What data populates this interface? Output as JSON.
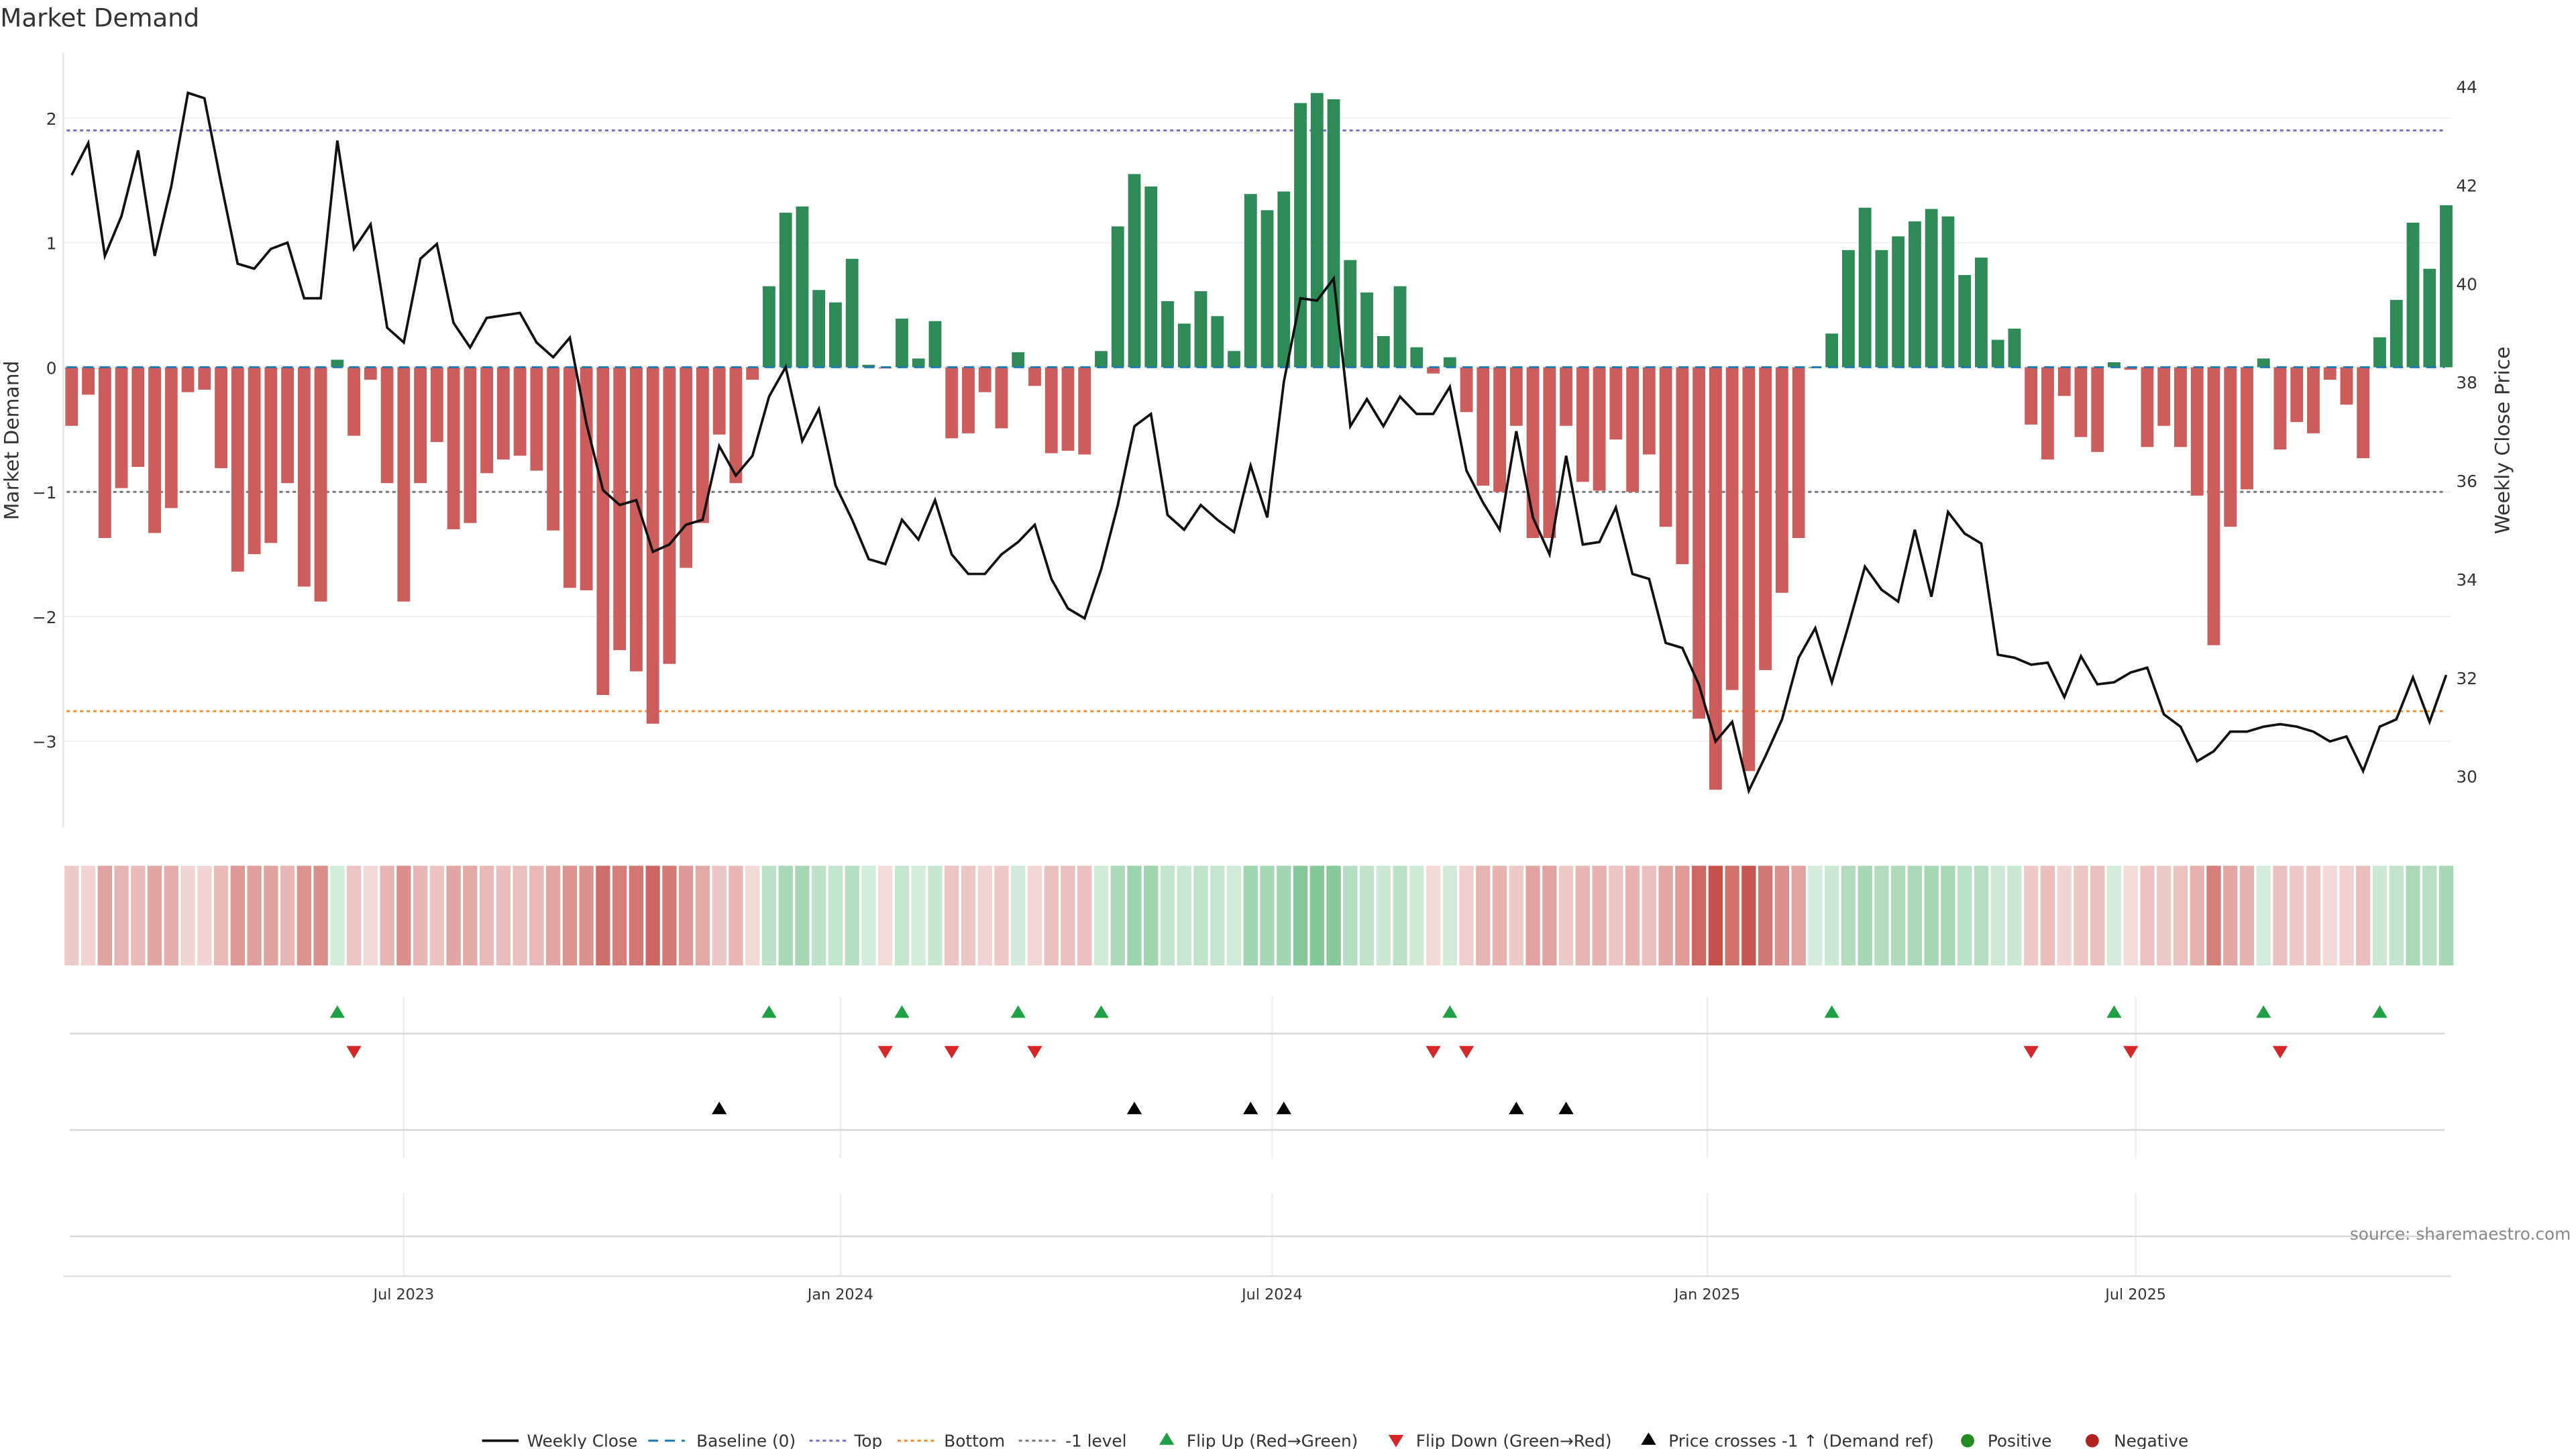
{
  "chart_data": {
    "type": "bar",
    "title": "Market Demand",
    "ylabel": "Market Demand",
    "y2label": "Weekly Close Price",
    "ylim": [
      -3.75,
      2.5
    ],
    "y2lim": [
      29.2,
      44.5
    ],
    "yticks": [
      "2",
      "1",
      "0",
      "−1",
      "−2",
      "−3"
    ],
    "ytick_values": [
      2,
      1,
      0,
      -1,
      -2,
      -3
    ],
    "y2ticks": [
      "44",
      "42",
      "40",
      "38",
      "36",
      "34",
      "32",
      "30"
    ],
    "y2tick_values": [
      44,
      42,
      40,
      38,
      36,
      34,
      32,
      30
    ],
    "xticks": [
      "Jul 2023",
      "Jan 2024",
      "Jul 2024",
      "Jan 2025",
      "Jul 2025"
    ],
    "xtick_week_index": [
      20.0,
      46.3,
      72.3,
      98.5,
      124.3
    ],
    "reference_lines": {
      "top": 1.9,
      "bottom": -2.76,
      "minus_one": -1,
      "baseline": 0
    },
    "demand": [
      -0.47,
      -0.22,
      -1.37,
      -0.97,
      -0.8,
      -1.33,
      -1.13,
      -0.2,
      -0.18,
      -0.81,
      -1.64,
      -1.5,
      -1.41,
      -0.93,
      -1.76,
      -1.88,
      0.06,
      -0.55,
      -0.1,
      -0.93,
      -1.88,
      -0.93,
      -0.6,
      -1.3,
      -1.25,
      -0.85,
      -0.74,
      -0.71,
      -0.83,
      -1.31,
      -1.77,
      -1.79,
      -2.63,
      -2.27,
      -2.44,
      -2.86,
      -2.38,
      -1.61,
      -1.25,
      -0.54,
      -0.93,
      -0.1,
      0.65,
      1.24,
      1.29,
      0.62,
      0.52,
      0.87,
      0.02,
      -0.01,
      0.39,
      0.07,
      0.37,
      -0.57,
      -0.53,
      -0.2,
      -0.49,
      0.12,
      -0.15,
      -0.69,
      -0.67,
      -0.7,
      0.13,
      1.13,
      1.55,
      1.45,
      0.53,
      0.35,
      0.61,
      0.41,
      0.13,
      1.39,
      1.26,
      1.41,
      2.12,
      2.2,
      2.15,
      0.86,
      0.6,
      0.25,
      0.65,
      0.16,
      -0.05,
      0.08,
      -0.36,
      -0.95,
      -1.0,
      -0.47,
      -1.37,
      -1.37,
      -0.47,
      -0.92,
      -0.99,
      -0.58,
      -1.0,
      -0.7,
      -1.28,
      -1.58,
      -2.82,
      -3.39,
      -2.59,
      -3.24,
      -2.43,
      -1.81,
      -1.37,
      0.0,
      0.27,
      0.94,
      1.28,
      0.94,
      1.05,
      1.17,
      1.27,
      1.21,
      0.74,
      0.88,
      0.22,
      0.31,
      -0.46,
      -0.74,
      -0.23,
      -0.56,
      -0.68,
      0.04,
      -0.02,
      -0.64,
      -0.47,
      -0.64,
      -1.03,
      -2.23,
      -1.28,
      -0.98,
      0.07,
      -0.66,
      -0.44,
      -0.53,
      -0.1,
      -0.3,
      -0.73,
      0.24,
      0.54,
      1.16,
      0.79,
      1.3
    ],
    "weekly_close": [
      42.2,
      42.85,
      40.56,
      41.37,
      42.7,
      40.56,
      41.98,
      43.87,
      43.76,
      42.04,
      40.4,
      40.3,
      40.7,
      40.83,
      39.7,
      39.7,
      42.9,
      40.7,
      41.2,
      39.1,
      38.8,
      40.5,
      40.8,
      39.2,
      38.7,
      39.3,
      39.35,
      39.4,
      38.8,
      38.5,
      38.9,
      37.15,
      35.8,
      35.5,
      35.6,
      34.55,
      34.7,
      35.1,
      35.2,
      36.7,
      36.1,
      36.5,
      37.7,
      38.3,
      36.8,
      37.45,
      35.9,
      35.2,
      34.4,
      34.3,
      35.2,
      34.8,
      35.6,
      34.5,
      34.1,
      34.1,
      34.5,
      34.75,
      35.1,
      34.0,
      33.4,
      33.2,
      34.2,
      35.5,
      37.1,
      37.35,
      35.3,
      35.0,
      35.5,
      35.2,
      34.95,
      36.3,
      35.25,
      38.0,
      39.7,
      39.65,
      40.1,
      37.1,
      37.65,
      37.1,
      37.7,
      37.35,
      37.35,
      37.9,
      36.2,
      35.55,
      35.0,
      37.0,
      35.25,
      34.5,
      36.5,
      34.7,
      34.75,
      35.45,
      34.1,
      34.0,
      32.7,
      32.6,
      31.85,
      30.7,
      31.1,
      29.7,
      30.4,
      31.15,
      32.4,
      33.0,
      31.9,
      33.06,
      34.25,
      33.78,
      33.54,
      35.0,
      33.64,
      35.36,
      34.92,
      34.72,
      32.46,
      32.4,
      32.26,
      32.3,
      31.6,
      32.43,
      31.86,
      31.9,
      32.1,
      32.2,
      31.25,
      31.0,
      30.3,
      30.5,
      30.9,
      30.9,
      31.0,
      31.05,
      31.0,
      30.9,
      30.7,
      30.8,
      30.1,
      31.0,
      31.15,
      32.0,
      31.1,
      32.05
    ],
    "flip_up_index": [
      16,
      42,
      50,
      57,
      62,
      83,
      106,
      123,
      132,
      139
    ],
    "flip_down_index": [
      17,
      49,
      53,
      58,
      82,
      84,
      118,
      124,
      133
    ],
    "price_cross_index": [
      39,
      64,
      71,
      73,
      87,
      90
    ],
    "legend": [
      "Weekly Close",
      "Baseline (0)",
      "Top",
      "Bottom",
      "-1 level",
      "Flip Up (Red→Green)",
      "Flip Down (Green→Red)",
      "Price crosses -1 ↑ (Demand ref)",
      "Positive",
      "Negative"
    ],
    "legend_placement": "bottom-center",
    "grid": true
  },
  "source": "source: sharemaestro.com",
  "colors": {
    "positive": "#2e8b57",
    "negative": "#cd5c5c",
    "top": "#7b68c8",
    "bottom": "#f08c28",
    "minus_one": "#777777",
    "baseline": "#1f77b4",
    "flip_up": "#1fa045",
    "flip_down": "#d62728",
    "cross": "#000000",
    "pos_dot": "#228b22",
    "neg_dot": "#b22222"
  }
}
